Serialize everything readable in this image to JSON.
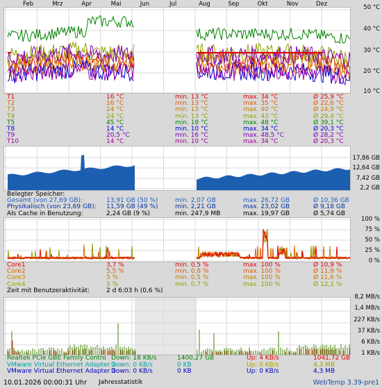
{
  "months": [
    "Feb",
    "Mrz",
    "Apr",
    "Mai",
    "Jun",
    "Jul",
    "Aug",
    "Sep",
    "Okt",
    "Nov",
    "Dez"
  ],
  "temp_axis": [
    "50 °C",
    "40 °C",
    "30 °C",
    "20 °C",
    "10 °C"
  ],
  "temp_rows": [
    {
      "name": "T1",
      "cur": "16 °C",
      "min": "min. 13 °C",
      "max": "max. 34 °C",
      "avg": "Ø 25,9 °C",
      "color": "#e00000",
      "mincolor": "#e00000",
      "maxcolor": "#e00000"
    },
    {
      "name": "T2",
      "cur": "16 °C",
      "min": "min. 13 °C",
      "max": "max. 35 °C",
      "avg": "Ø 22,6 °C",
      "color": "#e06000",
      "mincolor": "#e06000",
      "maxcolor": "#e06000"
    },
    {
      "name": "T3",
      "cur": "24 °C",
      "min": "min. 15 °C",
      "max": "max. 40 °C",
      "avg": "Ø 24,9 °C",
      "color": "#c08000",
      "mincolor": "#c08000",
      "maxcolor": "#c08000"
    },
    {
      "name": "T4",
      "cur": "24 °C",
      "min": "min. 13 °C",
      "max": "max. 43 °C",
      "avg": "Ø 29,4 °C",
      "color": "#90a000",
      "mincolor": "#90a000",
      "maxcolor": "#90a000"
    },
    {
      "name": "T5",
      "cur": "45 °C",
      "min": "min. 18 °C",
      "max": "max. 48 °C",
      "avg": "Ø 39,1 °C",
      "color": "#008000",
      "mincolor": "#008000",
      "maxcolor": "#008000"
    },
    {
      "name": "T8",
      "cur": "14 °C",
      "min": "min. 10 °C",
      "max": "max. 34 °C",
      "avg": "Ø 20,3 °C",
      "color": "#0000d0",
      "mincolor": "#0000d0",
      "maxcolor": "#0000d0"
    },
    {
      "name": "T9",
      "cur": "20,5 °C",
      "min": "min. 16 °C",
      "max": "max. 48,5 °C",
      "avg": "Ø 28,2 °C",
      "color": "#8000c0",
      "mincolor": "#8000c0",
      "maxcolor": "#8000c0"
    },
    {
      "name": "T10",
      "cur": "14 °C",
      "min": "min. 10 °C",
      "max": "max. 34 °C",
      "avg": "Ø 20,3 °C",
      "color": "#a000a0",
      "mincolor": "#a000a0",
      "maxcolor": "#a000a0"
    }
  ],
  "mem_axis": [
    "17,86 GB",
    "12,64 GB",
    "7,42 GB",
    "2,2 GB"
  ],
  "mem_header": "Belegter Speicher:",
  "mem_rows": [
    {
      "name": "Gesamt (von 27,69 GB):",
      "cur": "13,91 GB (50 %)",
      "min": "min. 2,07 GB",
      "max": "max. 26,72 GB",
      "avg": "Ø 10,36 GB",
      "color": "#2060c0"
    },
    {
      "name": "Physikalisch (von 23,69 GB):",
      "cur": "11,59 GB (49 %)",
      "min": "min. 2,21 GB",
      "max": "max. 23,02 GB",
      "avg": "Ø 9,18 GB",
      "color": "#0030a0"
    },
    {
      "name": "Als Cache in Benutzung:",
      "cur": "2,24 GB (9 %)",
      "min": "min. 247,9 MB",
      "max": "max. 19,97 GB",
      "avg": "Ø 5,74 GB",
      "color": "#000000"
    }
  ],
  "cpu_axis": [
    "100 %",
    "75 %",
    "50 %",
    "25 %",
    "0 %"
  ],
  "cpu_rows": [
    {
      "name": "Core1",
      "cur": "3,7 %",
      "min": "min. 0,5 %",
      "max": "max. 100 %",
      "avg": "Ø 10,9 %",
      "color": "#e00000"
    },
    {
      "name": "Core2",
      "cur": "5,5 %",
      "min": "min. 0,8 %",
      "max": "max. 100 %",
      "avg": "Ø 11,9 %",
      "color": "#e06000"
    },
    {
      "name": "Core3",
      "cur": "5 %",
      "min": "min. 0,5 %",
      "max": "max. 100 %",
      "avg": "Ø 11,6 %",
      "color": "#c08000"
    },
    {
      "name": "Core4",
      "cur": "5 %",
      "min": "min. 0,7 %",
      "max": "max. 100 %",
      "avg": "Ø 12,1 %",
      "color": "#90a000"
    }
  ],
  "activity": {
    "label": "Zeit mit Benutzeraktivität:",
    "value": "2 d 6:03 h (0,6 %)"
  },
  "net_axis": [
    "8,2 MB/s",
    "1,4 MB/s",
    "227 KB/s",
    "37 KB/s",
    "6 KB/s",
    "1 KB/s"
  ],
  "net_rows": [
    {
      "name": "Realtek PCIe GBE Family Contro",
      "down": "Down: 18 KB/s",
      "dtotal": "1400,27 GB",
      "up": "Up: 4 KB/s",
      "utotal": "1041,72 GB",
      "color": "#008000",
      "upcolor": "#e00000"
    },
    {
      "name": "VMware Virtual Ethernet Adapter 1",
      "down": "Down: 0 KB/s",
      "dtotal": "0 KB",
      "up": "Up: 0 KB/s",
      "utotal": "4,3 MB",
      "color": "#00a0a0",
      "upcolor": "#a0a000"
    },
    {
      "name": "VMware Virtual Ethernet Adapter 1",
      "down": "Down: 0 KB/s",
      "dtotal": "0 KB",
      "up": "Up: 0 KB/s",
      "utotal": "4,3 MB",
      "color": "#0000c0",
      "upcolor": "#0000c0"
    }
  ],
  "footer": {
    "datetime": "10.01.2026 00:00:31 Uhr",
    "title": "Jahresstatistik",
    "version": "WebTemp 3.39-pre1"
  },
  "colors": {
    "panel_bg": "#ffffff",
    "grid": "#cccccc",
    "gap": "#e8e8e8",
    "mem_fill": "#1c5fb0"
  }
}
